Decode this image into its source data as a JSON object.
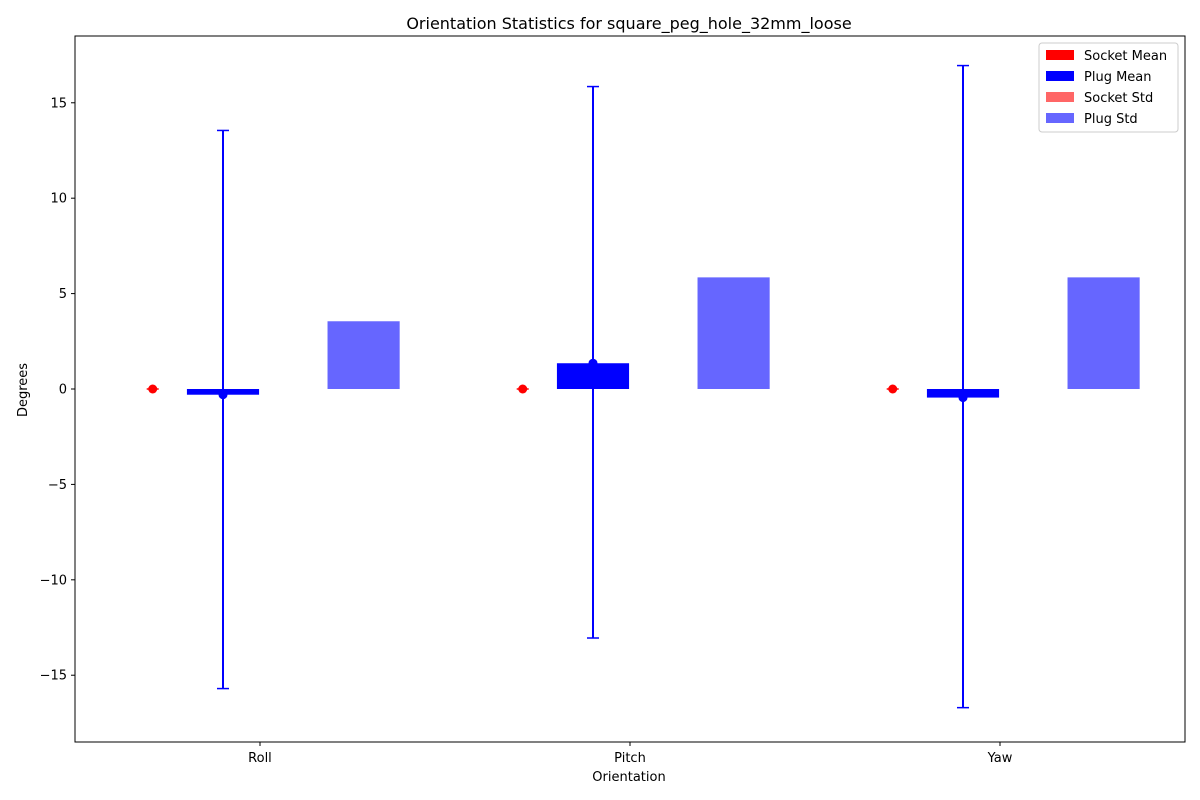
{
  "chart_data": {
    "type": "bar",
    "title": "Orientation Statistics for square_peg_hole_32mm_loose",
    "xlabel": "Orientation",
    "ylabel": "Degrees",
    "categories": [
      "Roll",
      "Pitch",
      "Yaw"
    ],
    "ylim": [
      -18.5,
      18.5
    ],
    "yticks": [
      -15,
      -10,
      -5,
      0,
      5,
      10,
      15
    ],
    "ytick_labels": [
      "−15",
      "−10",
      "−5",
      "0",
      "5",
      "10",
      "15"
    ],
    "grid": false,
    "legend_position": "top-right",
    "series": [
      {
        "name": "Socket Mean",
        "color": "#ff0000",
        "values": [
          0.0,
          0.0,
          0.0
        ],
        "error_low": [
          0.0,
          0.0,
          0.0
        ],
        "error_high": [
          0.0,
          0.0,
          0.0
        ]
      },
      {
        "name": "Plug Mean",
        "color": "#0000ff",
        "values": [
          -0.3,
          1.35,
          -0.45
        ],
        "error_low": [
          -15.7,
          -13.05,
          -16.7
        ],
        "error_high": [
          13.55,
          15.85,
          16.95
        ]
      },
      {
        "name": "Socket Std",
        "color": "#ff6666",
        "values": [
          0.0,
          0.0,
          0.0
        ]
      },
      {
        "name": "Plug Std",
        "color": "#6666ff",
        "values": [
          3.55,
          5.85,
          5.85
        ]
      }
    ]
  }
}
